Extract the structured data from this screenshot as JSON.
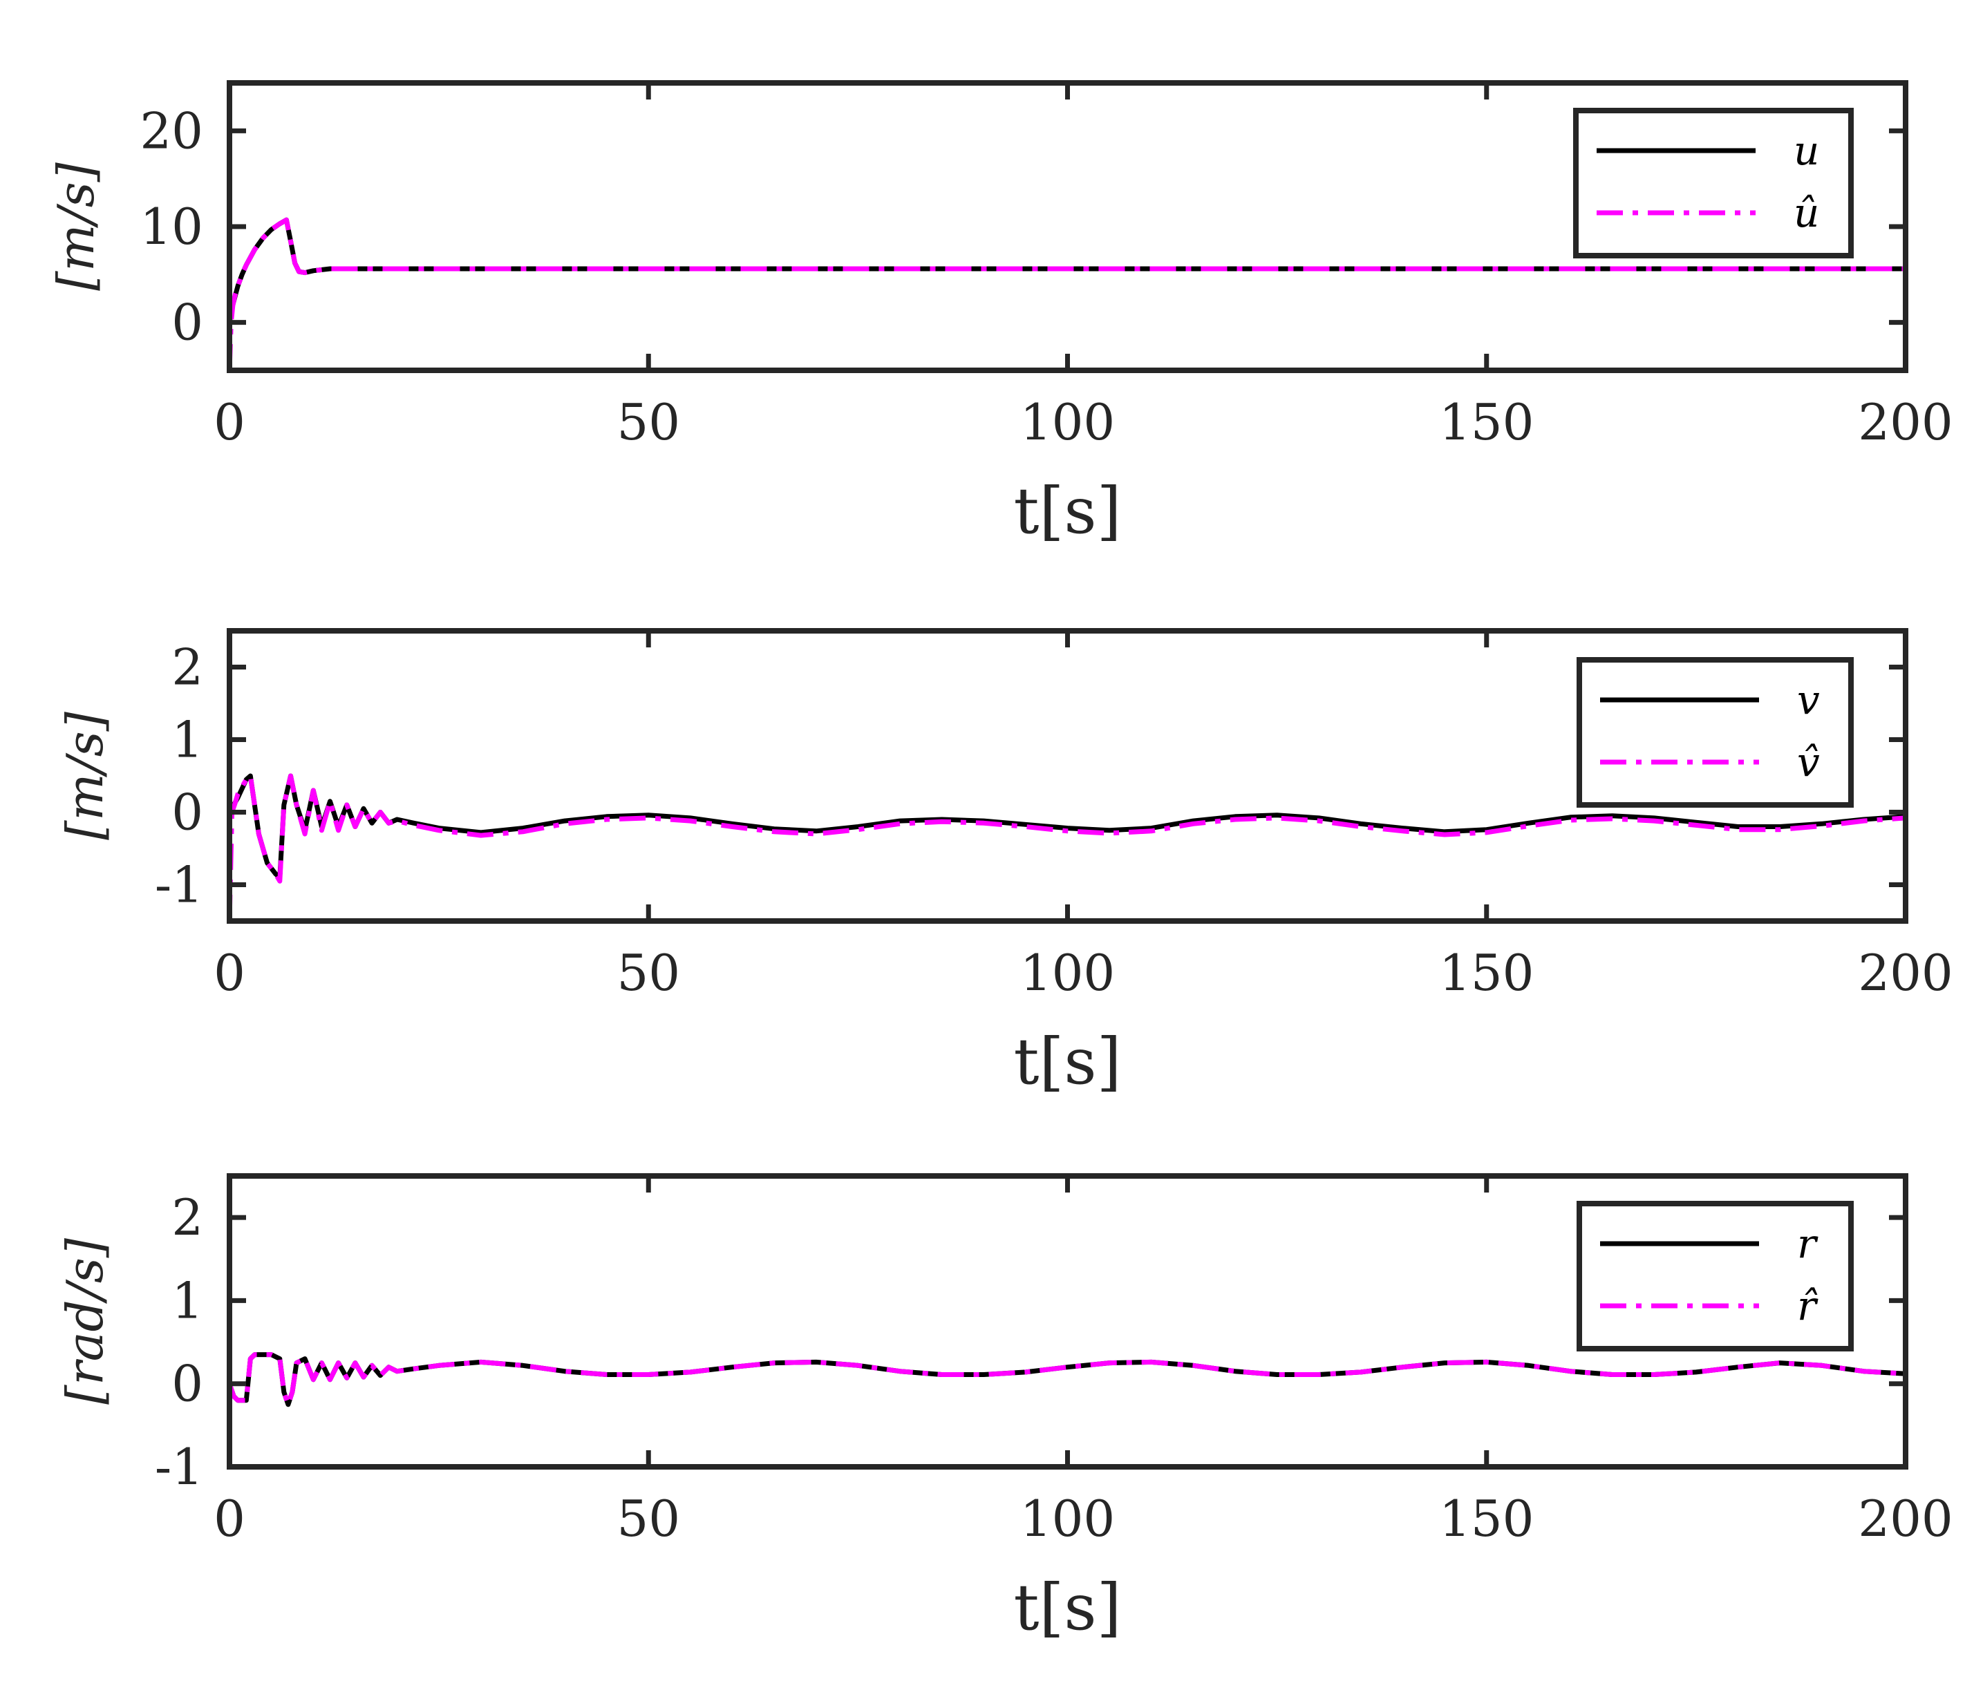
{
  "colors": {
    "true_line": "#000000",
    "estimate_line": "#ff00ff",
    "axes": "#262626",
    "background": "#ffffff"
  },
  "chart_data": [
    {
      "type": "line",
      "title": "",
      "xlabel": "t[s]",
      "ylabel": "[m/s]",
      "xlim": [
        0,
        200
      ],
      "ylim": [
        -5,
        25
      ],
      "xticks": [
        "0",
        "50",
        "100",
        "150",
        "200"
      ],
      "yticks": [
        "0",
        "10",
        "20"
      ],
      "ytick_values": [
        0,
        10,
        20
      ],
      "grid": false,
      "legend_position": "top-right",
      "series": [
        {
          "name": "u",
          "style": "solid",
          "x": [
            0,
            0.3,
            0.6,
            1,
            1.5,
            2,
            3,
            4,
            5,
            6,
            6.8,
            7.3,
            7.8,
            8.3,
            9,
            10,
            12,
            15,
            20,
            40,
            60,
            80,
            100,
            120,
            140,
            160,
            180,
            200
          ],
          "y": [
            0,
            1.5,
            2.5,
            3.8,
            5.0,
            6.0,
            7.6,
            8.8,
            9.7,
            10.3,
            10.7,
            8.5,
            6.2,
            5.3,
            5.2,
            5.4,
            5.6,
            5.6,
            5.6,
            5.6,
            5.6,
            5.6,
            5.6,
            5.6,
            5.6,
            5.6,
            5.6,
            5.6
          ]
        },
        {
          "name": "û",
          "style": "dashdot",
          "x": [
            0,
            0.2,
            0.4,
            0.7,
            1,
            1.5,
            2,
            3,
            4,
            5,
            6,
            6.8,
            7.3,
            7.8,
            8.3,
            9,
            10,
            12,
            15,
            20,
            40,
            60,
            80,
            100,
            120,
            140,
            160,
            180,
            200
          ],
          "y": [
            -5,
            0,
            1.8,
            3.0,
            3.8,
            5.0,
            6.0,
            7.6,
            8.8,
            9.7,
            10.3,
            10.7,
            8.5,
            6.2,
            5.3,
            5.2,
            5.4,
            5.6,
            5.6,
            5.6,
            5.6,
            5.6,
            5.6,
            5.6,
            5.6,
            5.6,
            5.6,
            5.6,
            5.6
          ]
        }
      ]
    },
    {
      "type": "line",
      "title": "",
      "xlabel": "t[s]",
      "ylabel": "[m/s]",
      "xlim": [
        0,
        200
      ],
      "ylim": [
        -1.5,
        2.5
      ],
      "xticks": [
        "0",
        "50",
        "100",
        "150",
        "200"
      ],
      "yticks": [
        "-1",
        "0",
        "1",
        "2"
      ],
      "ytick_values": [
        -1,
        0,
        1,
        2
      ],
      "grid": false,
      "legend_position": "top-right",
      "series": [
        {
          "name": "v",
          "style": "solid",
          "x": [
            0,
            1,
            2,
            2.5,
            3.5,
            4.5,
            5.5,
            6,
            6.5,
            7.3,
            8,
            9,
            10,
            11,
            12,
            13,
            14,
            15,
            16,
            17,
            18,
            19,
            20,
            22,
            25,
            30,
            35,
            40,
            45,
            50,
            55,
            60,
            65,
            70,
            75,
            80,
            85,
            90,
            95,
            100,
            105,
            110,
            115,
            120,
            125,
            130,
            135,
            140,
            145,
            150,
            155,
            160,
            165,
            170,
            175,
            180,
            185,
            190,
            195,
            200
          ],
          "y": [
            0,
            0.2,
            0.45,
            0.5,
            -0.3,
            -0.7,
            -0.85,
            -0.9,
            0.1,
            0.5,
            0.1,
            -0.25,
            0.3,
            -0.2,
            0.15,
            -0.2,
            0.1,
            -0.2,
            0.05,
            -0.15,
            0,
            -0.15,
            -0.1,
            -0.15,
            -0.22,
            -0.28,
            -0.22,
            -0.12,
            -0.06,
            -0.04,
            -0.08,
            -0.16,
            -0.23,
            -0.26,
            -0.2,
            -0.12,
            -0.1,
            -0.12,
            -0.17,
            -0.22,
            -0.25,
            -0.22,
            -0.12,
            -0.06,
            -0.04,
            -0.08,
            -0.16,
            -0.22,
            -0.27,
            -0.24,
            -0.15,
            -0.07,
            -0.05,
            -0.08,
            -0.14,
            -0.2,
            -0.2,
            -0.16,
            -0.1,
            -0.06
          ]
        },
        {
          "name": "v̂",
          "style": "dashdot",
          "x": [
            0,
            0.3,
            0.6,
            1,
            2,
            2.5,
            3.5,
            4.5,
            5.5,
            6,
            6.5,
            7.3,
            8,
            9,
            10,
            11,
            12,
            13,
            14,
            15,
            16,
            17,
            18,
            19,
            20,
            22,
            25,
            30,
            35,
            40,
            45,
            50,
            55,
            60,
            65,
            70,
            75,
            80,
            85,
            90,
            95,
            100,
            105,
            110,
            115,
            120,
            125,
            130,
            135,
            140,
            145,
            150,
            155,
            160,
            165,
            170,
            175,
            180,
            185,
            190,
            195,
            200
          ],
          "y": [
            -1.5,
            0,
            0.1,
            0.25,
            0.45,
            0.5,
            -0.3,
            -0.7,
            -0.85,
            -0.95,
            0.1,
            0.5,
            0.1,
            -0.3,
            0.3,
            -0.25,
            0.15,
            -0.25,
            0.1,
            -0.2,
            0.05,
            -0.15,
            0,
            -0.15,
            -0.12,
            -0.18,
            -0.25,
            -0.32,
            -0.27,
            -0.16,
            -0.1,
            -0.08,
            -0.12,
            -0.2,
            -0.27,
            -0.3,
            -0.24,
            -0.16,
            -0.13,
            -0.15,
            -0.2,
            -0.26,
            -0.29,
            -0.26,
            -0.16,
            -0.1,
            -0.08,
            -0.12,
            -0.2,
            -0.26,
            -0.31,
            -0.28,
            -0.19,
            -0.11,
            -0.09,
            -0.12,
            -0.18,
            -0.24,
            -0.24,
            -0.19,
            -0.12,
            -0.08
          ]
        }
      ]
    },
    {
      "type": "line",
      "title": "",
      "xlabel": "t[s]",
      "ylabel": "[rad/s]",
      "xlim": [
        0,
        200
      ],
      "ylim": [
        -1,
        2.5
      ],
      "xticks": [
        "0",
        "50",
        "100",
        "150",
        "200"
      ],
      "yticks": [
        "-1",
        "0",
        "1",
        "2"
      ],
      "ytick_values": [
        -1,
        0,
        1,
        2
      ],
      "grid": false,
      "legend_position": "top-right",
      "series": [
        {
          "name": "r",
          "style": "solid",
          "x": [
            0,
            0.5,
            1,
            2,
            2.5,
            3,
            4,
            5,
            6,
            6.5,
            7,
            7.5,
            8,
            9,
            10,
            11,
            12,
            13,
            14,
            15,
            16,
            17,
            18,
            19,
            20,
            22,
            25,
            30,
            35,
            40,
            45,
            50,
            55,
            60,
            65,
            70,
            75,
            80,
            85,
            90,
            95,
            100,
            105,
            110,
            115,
            120,
            125,
            130,
            135,
            140,
            145,
            150,
            155,
            160,
            165,
            170,
            175,
            180,
            185,
            190,
            195,
            200
          ],
          "y": [
            0,
            -0.15,
            -0.2,
            -0.2,
            0.3,
            0.35,
            0.35,
            0.35,
            0.3,
            -0.1,
            -0.25,
            -0.1,
            0.25,
            0.3,
            0.05,
            0.25,
            0.05,
            0.25,
            0.07,
            0.25,
            0.08,
            0.22,
            0.1,
            0.2,
            0.15,
            0.18,
            0.22,
            0.26,
            0.22,
            0.15,
            0.11,
            0.11,
            0.14,
            0.2,
            0.25,
            0.26,
            0.22,
            0.15,
            0.11,
            0.11,
            0.14,
            0.2,
            0.25,
            0.26,
            0.22,
            0.15,
            0.11,
            0.11,
            0.14,
            0.2,
            0.25,
            0.26,
            0.22,
            0.15,
            0.11,
            0.11,
            0.14,
            0.2,
            0.25,
            0.22,
            0.15,
            0.12
          ]
        },
        {
          "name": "r̂",
          "style": "dashdot",
          "x": [
            0,
            0.5,
            1,
            2,
            2.5,
            3,
            4,
            5,
            6,
            6.5,
            7,
            7.5,
            8,
            9,
            10,
            11,
            12,
            13,
            14,
            15,
            16,
            17,
            18,
            19,
            20,
            22,
            25,
            30,
            35,
            40,
            45,
            50,
            55,
            60,
            65,
            70,
            75,
            80,
            85,
            90,
            95,
            100,
            105,
            110,
            115,
            120,
            125,
            130,
            135,
            140,
            145,
            150,
            155,
            160,
            165,
            170,
            175,
            180,
            185,
            190,
            195,
            200
          ],
          "y": [
            0,
            -0.15,
            -0.2,
            -0.2,
            0.3,
            0.35,
            0.35,
            0.35,
            0.3,
            -0.1,
            -0.25,
            -0.1,
            0.25,
            0.3,
            0.05,
            0.25,
            0.05,
            0.25,
            0.07,
            0.25,
            0.08,
            0.22,
            0.1,
            0.2,
            0.15,
            0.18,
            0.22,
            0.26,
            0.22,
            0.15,
            0.11,
            0.11,
            0.14,
            0.2,
            0.25,
            0.26,
            0.22,
            0.15,
            0.11,
            0.11,
            0.14,
            0.2,
            0.25,
            0.26,
            0.22,
            0.15,
            0.11,
            0.11,
            0.14,
            0.2,
            0.25,
            0.26,
            0.22,
            0.15,
            0.11,
            0.11,
            0.14,
            0.2,
            0.25,
            0.22,
            0.15,
            0.12
          ]
        }
      ]
    }
  ]
}
